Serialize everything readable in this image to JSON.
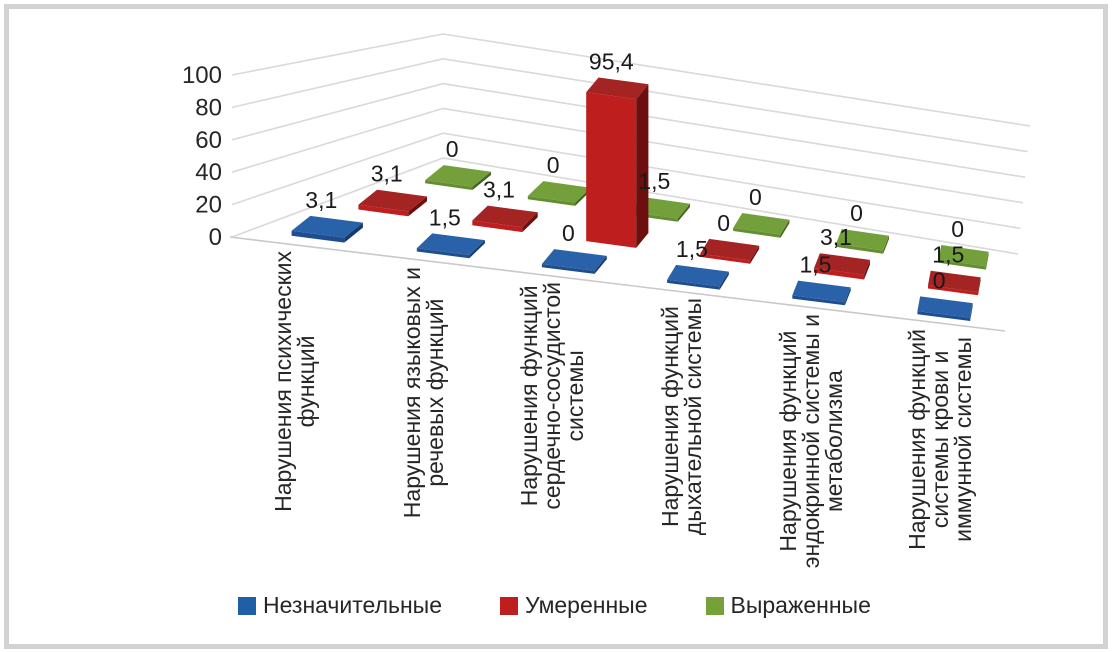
{
  "frame": {
    "border_color": "#d2d2d2",
    "background": "#ffffff",
    "gridline_color": "#d9d9d9",
    "axis_line_color": "#c9c9c9",
    "text_color": "#262626"
  },
  "chart_data": {
    "type": "bar",
    "projection": "3d",
    "title": "",
    "xlabel": "",
    "ylabel": "",
    "ylim": [
      0,
      100
    ],
    "yticks": [
      0,
      20,
      40,
      60,
      80,
      100
    ],
    "gridlines": true,
    "value_labels_shown": true,
    "decimal_separator": ",",
    "legend_position": "bottom",
    "categories": [
      {
        "label": "Нарушения психических функций",
        "lines": [
          "Нарушения психических",
          "функций"
        ]
      },
      {
        "label": "Нарушения языковых и речевых функций",
        "lines": [
          "Нарушения языковых и",
          "речевых функций"
        ]
      },
      {
        "label": "Нарушения функций сердечно-сосудистой системы",
        "lines": [
          "Нарушения функций",
          "сердечно-сосудистой",
          "системы"
        ]
      },
      {
        "label": "Нарушения функций дыхательной системы",
        "lines": [
          "Нарушения функций",
          "дыхательной системы"
        ]
      },
      {
        "label": "Нарушения функций эндокринной системы и метаболизма",
        "lines": [
          "Нарушения функций",
          "эндокринной системы и",
          "метаболизма"
        ]
      },
      {
        "label": "Нарушения функций системы крови и иммунной системы",
        "lines": [
          "Нарушения функций",
          "системы крови и",
          "иммунной системы"
        ]
      }
    ],
    "series": [
      {
        "name": "Незначительные",
        "values": [
          3.1,
          1.5,
          0,
          1.5,
          1.5,
          0
        ],
        "colors": {
          "top": "#2a62aa",
          "front": "#1e4e8f",
          "side": "#143a6e",
          "legend": "#1f5fa8"
        }
      },
      {
        "name": "Умеренные",
        "values": [
          3.1,
          3.1,
          95.4,
          0,
          3.1,
          1.5
        ],
        "colors": {
          "top": "#a42323",
          "front": "#be1e1e",
          "side": "#6e0f0f",
          "legend": "#be1e1e"
        }
      },
      {
        "name": "Выраженные",
        "values": [
          0,
          0,
          1.5,
          0,
          0,
          0
        ],
        "colors": {
          "top": "#74a03c",
          "front": "#648e31",
          "side": "#44631f",
          "legend": "#76a038"
        }
      }
    ]
  }
}
